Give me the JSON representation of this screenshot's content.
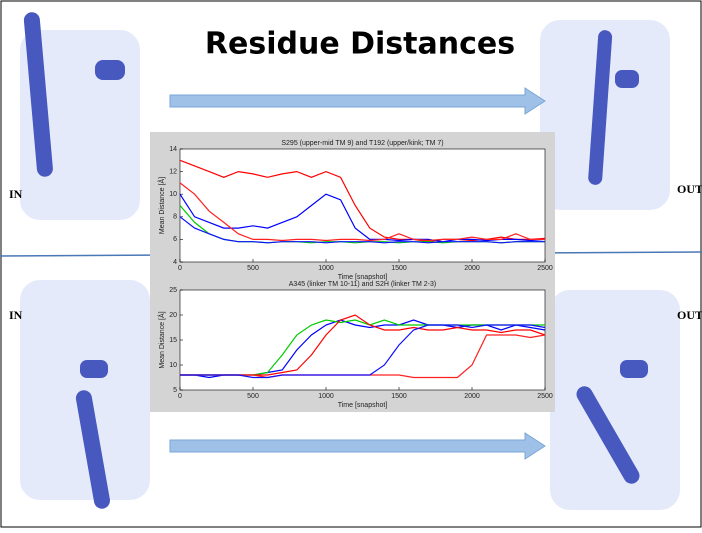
{
  "slide": {
    "title": "Residue Distances",
    "labels": [
      "IN",
      "OUT",
      "IN",
      "OUT"
    ]
  },
  "chart_data": [
    {
      "type": "line",
      "title": "S295 (upper-mid TM 9) and T192 (upper/kink; TM 7)",
      "x_label": "Time [snapshot]",
      "y_label": "Mean Distance [Å]",
      "x": [
        0,
        100,
        200,
        300,
        400,
        500,
        600,
        700,
        800,
        900,
        1000,
        1100,
        1200,
        1300,
        1400,
        1500,
        1600,
        1700,
        1800,
        1900,
        2000,
        2100,
        2200,
        2300,
        2400,
        2500
      ],
      "xlim": [
        0,
        2500
      ],
      "xticks": [
        0,
        500,
        1000,
        1500,
        2000,
        2500
      ],
      "ylim": [
        4,
        14
      ],
      "yticks": [
        4,
        6,
        8,
        10,
        12,
        14
      ],
      "series": [
        {
          "color": "#ff0000",
          "values": [
            13,
            12.5,
            12,
            11.5,
            12,
            11.8,
            11.5,
            11.8,
            12,
            11.5,
            12,
            11.5,
            9,
            7,
            6.2,
            6,
            6,
            5.8,
            6,
            6,
            5.9,
            6,
            6.2,
            6,
            6,
            6.1
          ]
        },
        {
          "color": "#00cc00",
          "values": [
            9,
            7.5,
            6.5,
            6,
            5.8,
            5.8,
            5.7,
            5.8,
            5.8,
            5.7,
            5.8,
            5.8,
            5.7,
            5.8,
            5.8,
            5.7,
            5.8,
            5.8,
            5.7,
            5.8,
            5.8,
            5.8,
            5.7,
            5.8,
            5.8,
            5.8
          ]
        },
        {
          "color": "#0000ff",
          "values": [
            10,
            8,
            7.5,
            7,
            7,
            7.2,
            7,
            7.5,
            8,
            9,
            10,
            9.5,
            7,
            6,
            6,
            5.9,
            6,
            6,
            5.8,
            6,
            6,
            5.9,
            6,
            6,
            5.9,
            6
          ]
        },
        {
          "color": "#ff2020",
          "values": [
            11,
            10,
            8.5,
            7.5,
            6.5,
            6,
            6,
            5.9,
            6,
            6,
            5.9,
            6,
            6,
            5.9,
            6,
            6.5,
            6,
            5.9,
            6,
            6,
            6.2,
            6,
            6,
            6.5,
            6,
            6
          ]
        },
        {
          "color": "#1010ff",
          "values": [
            8,
            7,
            6.5,
            6,
            5.8,
            5.8,
            5.7,
            5.8,
            5.8,
            5.8,
            5.7,
            5.8,
            5.8,
            5.8,
            5.7,
            5.8,
            5.8,
            5.7,
            5.8,
            5.8,
            5.8,
            5.8,
            5.7,
            5.8,
            5.8,
            5.8
          ]
        }
      ]
    },
    {
      "type": "line",
      "title": "A345 (linker TM 10-11) and S2H (linker TM 2-3)",
      "x_label": "Time [snapshot]",
      "y_label": "Mean Distance [Å]",
      "x": [
        0,
        100,
        200,
        300,
        400,
        500,
        600,
        700,
        800,
        900,
        1000,
        1100,
        1200,
        1300,
        1400,
        1500,
        1600,
        1700,
        1800,
        1900,
        2000,
        2100,
        2200,
        2300,
        2400,
        2500
      ],
      "xlim": [
        0,
        2500
      ],
      "xticks": [
        0,
        500,
        1000,
        1500,
        2000,
        2500
      ],
      "ylim": [
        5,
        25
      ],
      "yticks": [
        5,
        10,
        15,
        20,
        25
      ],
      "series": [
        {
          "color": "#0000ff",
          "values": [
            8,
            8,
            7.5,
            8,
            8,
            8,
            8.5,
            9,
            13,
            16,
            18,
            19,
            18,
            17.5,
            18,
            18,
            19,
            18,
            18,
            17.5,
            18,
            18,
            17,
            18,
            17.5,
            17
          ]
        },
        {
          "color": "#00cc00",
          "values": [
            8,
            8,
            8,
            8,
            8,
            8,
            8.5,
            12,
            16,
            18,
            19,
            18.5,
            19,
            18,
            19,
            18,
            18,
            18,
            18,
            18,
            18,
            18,
            18,
            18,
            18,
            18
          ]
        },
        {
          "color": "#ff0000",
          "values": [
            8,
            8,
            8,
            8,
            8,
            8,
            8,
            8.5,
            9,
            12,
            16,
            19,
            20,
            18,
            17,
            17,
            17.5,
            17,
            17,
            17.5,
            17,
            17,
            16.5,
            17,
            17,
            16
          ]
        },
        {
          "color": "#ff2020",
          "values": [
            8,
            8,
            8,
            8,
            8,
            8,
            7.5,
            8,
            8,
            8,
            8,
            8,
            8,
            8,
            8,
            8,
            7.5,
            7.5,
            7.5,
            7.5,
            10,
            16,
            16,
            16,
            15.5,
            16
          ]
        },
        {
          "color": "#1010ff",
          "values": [
            8,
            8,
            8,
            8,
            8,
            7.5,
            7.5,
            8,
            8,
            8,
            8,
            8,
            8,
            8,
            10,
            14,
            17,
            18,
            18,
            18,
            17.5,
            18,
            18,
            18,
            18,
            17.5
          ]
        }
      ]
    }
  ]
}
